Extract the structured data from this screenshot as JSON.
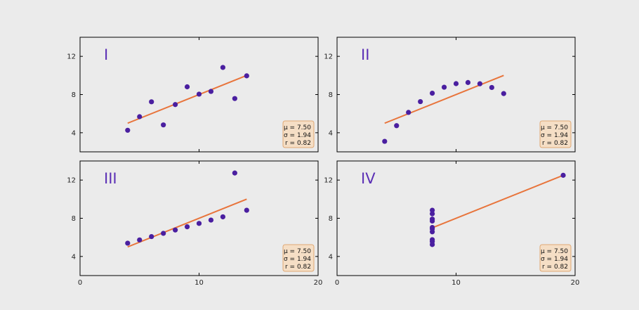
{
  "figure": {
    "background": "#ebebeb",
    "marker_color": "#4a1fa0",
    "fit_color": "#e8743b",
    "title_color": "#5b2fb5",
    "stats_box_fill": "#f7dcbe",
    "stats_box_stroke": "#e0a874"
  },
  "chart_data": [
    {
      "type": "scatter",
      "title": "I",
      "x": [
        10,
        8,
        13,
        9,
        11,
        14,
        6,
        4,
        12,
        7,
        5
      ],
      "y": [
        8.04,
        6.95,
        7.58,
        8.81,
        8.33,
        9.96,
        7.24,
        4.26,
        10.84,
        4.82,
        5.68
      ],
      "fit_line": {
        "x": [
          4,
          14
        ],
        "y": [
          5.0,
          10.0
        ]
      },
      "xlim": [
        0,
        20
      ],
      "ylim": [
        2,
        14
      ],
      "xticks": [
        0,
        10,
        20
      ],
      "yticks": [
        4,
        8,
        12
      ],
      "show_xticklabels": false,
      "stats": [
        "μ = 7.50",
        "σ = 1.94",
        "r = 0.82"
      ]
    },
    {
      "type": "scatter",
      "title": "II",
      "x": [
        10,
        8,
        13,
        9,
        11,
        14,
        6,
        4,
        12,
        7,
        5
      ],
      "y": [
        9.14,
        8.14,
        8.74,
        8.77,
        9.26,
        8.1,
        6.13,
        3.1,
        9.13,
        7.26,
        4.74
      ],
      "fit_line": {
        "x": [
          4,
          14
        ],
        "y": [
          5.0,
          10.0
        ]
      },
      "xlim": [
        0,
        20
      ],
      "ylim": [
        2,
        14
      ],
      "xticks": [
        0,
        10,
        20
      ],
      "yticks": [
        4,
        8,
        12
      ],
      "show_xticklabels": false,
      "stats": [
        "μ = 7.50",
        "σ = 1.94",
        "r = 0.82"
      ]
    },
    {
      "type": "scatter",
      "title": "III",
      "x": [
        10,
        8,
        13,
        9,
        11,
        14,
        6,
        4,
        12,
        7,
        5
      ],
      "y": [
        7.46,
        6.77,
        12.74,
        7.11,
        7.81,
        8.84,
        6.08,
        5.39,
        8.15,
        6.42,
        5.73
      ],
      "fit_line": {
        "x": [
          4,
          14
        ],
        "y": [
          5.0,
          10.0
        ]
      },
      "xlim": [
        0,
        20
      ],
      "ylim": [
        2,
        14
      ],
      "xticks": [
        0,
        10,
        20
      ],
      "yticks": [
        4,
        8,
        12
      ],
      "show_xticklabels": true,
      "stats": [
        "μ = 7.50",
        "σ = 1.94",
        "r = 0.82"
      ]
    },
    {
      "type": "scatter",
      "title": "IV",
      "x": [
        8,
        8,
        8,
        8,
        8,
        8,
        8,
        19,
        8,
        8,
        8
      ],
      "y": [
        6.58,
        5.76,
        7.71,
        8.84,
        8.47,
        7.04,
        5.25,
        12.5,
        5.56,
        7.91,
        6.89
      ],
      "fit_line": {
        "x": [
          8,
          19
        ],
        "y": [
          7.0,
          12.5
        ]
      },
      "xlim": [
        0,
        20
      ],
      "ylim": [
        2,
        14
      ],
      "xticks": [
        0,
        10,
        20
      ],
      "yticks": [
        4,
        8,
        12
      ],
      "show_xticklabels": true,
      "stats": [
        "μ = 7.50",
        "σ = 1.94",
        "r = 0.82"
      ]
    }
  ]
}
